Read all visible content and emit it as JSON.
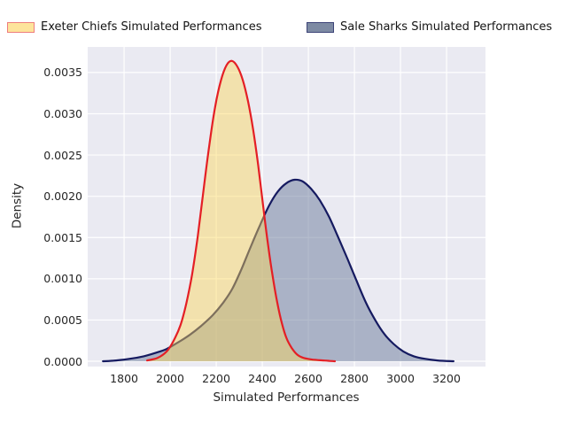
{
  "legend": {
    "entries": [
      {
        "label": "Exeter Chiefs Simulated Performances",
        "swatch_fill": "#fde49b",
        "swatch_border": "#ee7d7d"
      },
      {
        "label": "Sale Sharks Simulated Performances",
        "swatch_fill": "#7d8aa3",
        "swatch_border": "#3d4478"
      }
    ]
  },
  "axes": {
    "xlabel": "Simulated Performances",
    "ylabel": "Density",
    "x_ticks": [
      "1800",
      "2000",
      "2200",
      "2400",
      "2600",
      "2800",
      "3000",
      "3200"
    ],
    "y_ticks": [
      "0.0000",
      "0.0005",
      "0.0010",
      "0.0015",
      "0.0020",
      "0.0025",
      "0.0030",
      "0.0035"
    ]
  },
  "colors": {
    "figure_bg": "#ffffff",
    "plot_bg": "#eaeaf2",
    "grid": "#ffffff",
    "tick_text": "#262626"
  },
  "chart_data": {
    "type": "area",
    "subtype": "kde-density",
    "title": "",
    "xlabel": "Simulated Performances",
    "ylabel": "Density",
    "xlim": [
      1642,
      3369
    ],
    "ylim": [
      -6.4e-05,
      0.00381
    ],
    "grid": true,
    "legend_position": "top",
    "series": [
      {
        "name": "Exeter Chiefs Simulated Performances",
        "line_color": "#e41f25",
        "fill_color": "rgba(252,214,88,0.45)",
        "peak_x": 2265,
        "peak_density": 0.00364,
        "points": [
          [
            1900,
            1e-05
          ],
          [
            1945,
            4e-05
          ],
          [
            1985,
            0.00012
          ],
          [
            2015,
            0.00025
          ],
          [
            2045,
            0.00044
          ],
          [
            2070,
            0.0007
          ],
          [
            2095,
            0.00105
          ],
          [
            2120,
            0.00152
          ],
          [
            2145,
            0.00208
          ],
          [
            2170,
            0.00262
          ],
          [
            2195,
            0.00308
          ],
          [
            2220,
            0.0034
          ],
          [
            2245,
            0.00359
          ],
          [
            2268,
            0.00364
          ],
          [
            2292,
            0.00357
          ],
          [
            2315,
            0.00341
          ],
          [
            2338,
            0.00315
          ],
          [
            2360,
            0.00281
          ],
          [
            2382,
            0.00238
          ],
          [
            2405,
            0.00185
          ],
          [
            2425,
            0.00141
          ],
          [
            2445,
            0.00103
          ],
          [
            2465,
            0.00071
          ],
          [
            2485,
            0.00046
          ],
          [
            2505,
            0.00028
          ],
          [
            2528,
            0.00016
          ],
          [
            2552,
            8e-05
          ],
          [
            2580,
            4e-05
          ],
          [
            2620,
            2e-05
          ],
          [
            2665,
            1e-05
          ],
          [
            2715,
            0
          ]
        ]
      },
      {
        "name": "Sale Sharks Simulated Performances",
        "line_color": "#151a60",
        "fill_color": "rgba(106,122,154,0.5)",
        "peak_x": 2540,
        "peak_density": 0.0022,
        "points": [
          [
            1708,
            0
          ],
          [
            1765,
            1e-05
          ],
          [
            1825,
            3e-05
          ],
          [
            1885,
            6e-05
          ],
          [
            1935,
            0.0001
          ],
          [
            1985,
            0.00015
          ],
          [
            2035,
            0.00023
          ],
          [
            2085,
            0.00032
          ],
          [
            2135,
            0.00043
          ],
          [
            2185,
            0.00056
          ],
          [
            2230,
            0.00071
          ],
          [
            2270,
            0.00088
          ],
          [
            2310,
            0.00112
          ],
          [
            2350,
            0.00139
          ],
          [
            2390,
            0.00165
          ],
          [
            2430,
            0.00189
          ],
          [
            2468,
            0.00206
          ],
          [
            2505,
            0.00216
          ],
          [
            2540,
            0.0022
          ],
          [
            2575,
            0.00218
          ],
          [
            2612,
            0.00209
          ],
          [
            2650,
            0.00195
          ],
          [
            2690,
            0.00175
          ],
          [
            2730,
            0.0015
          ],
          [
            2770,
            0.00124
          ],
          [
            2810,
            0.00097
          ],
          [
            2850,
            0.00071
          ],
          [
            2890,
            0.0005
          ],
          [
            2930,
            0.00033
          ],
          [
            2970,
            0.00021
          ],
          [
            3012,
            0.00012
          ],
          [
            3058,
            6e-05
          ],
          [
            3105,
            3e-05
          ],
          [
            3160,
            1e-05
          ],
          [
            3230,
            0
          ]
        ]
      }
    ]
  }
}
